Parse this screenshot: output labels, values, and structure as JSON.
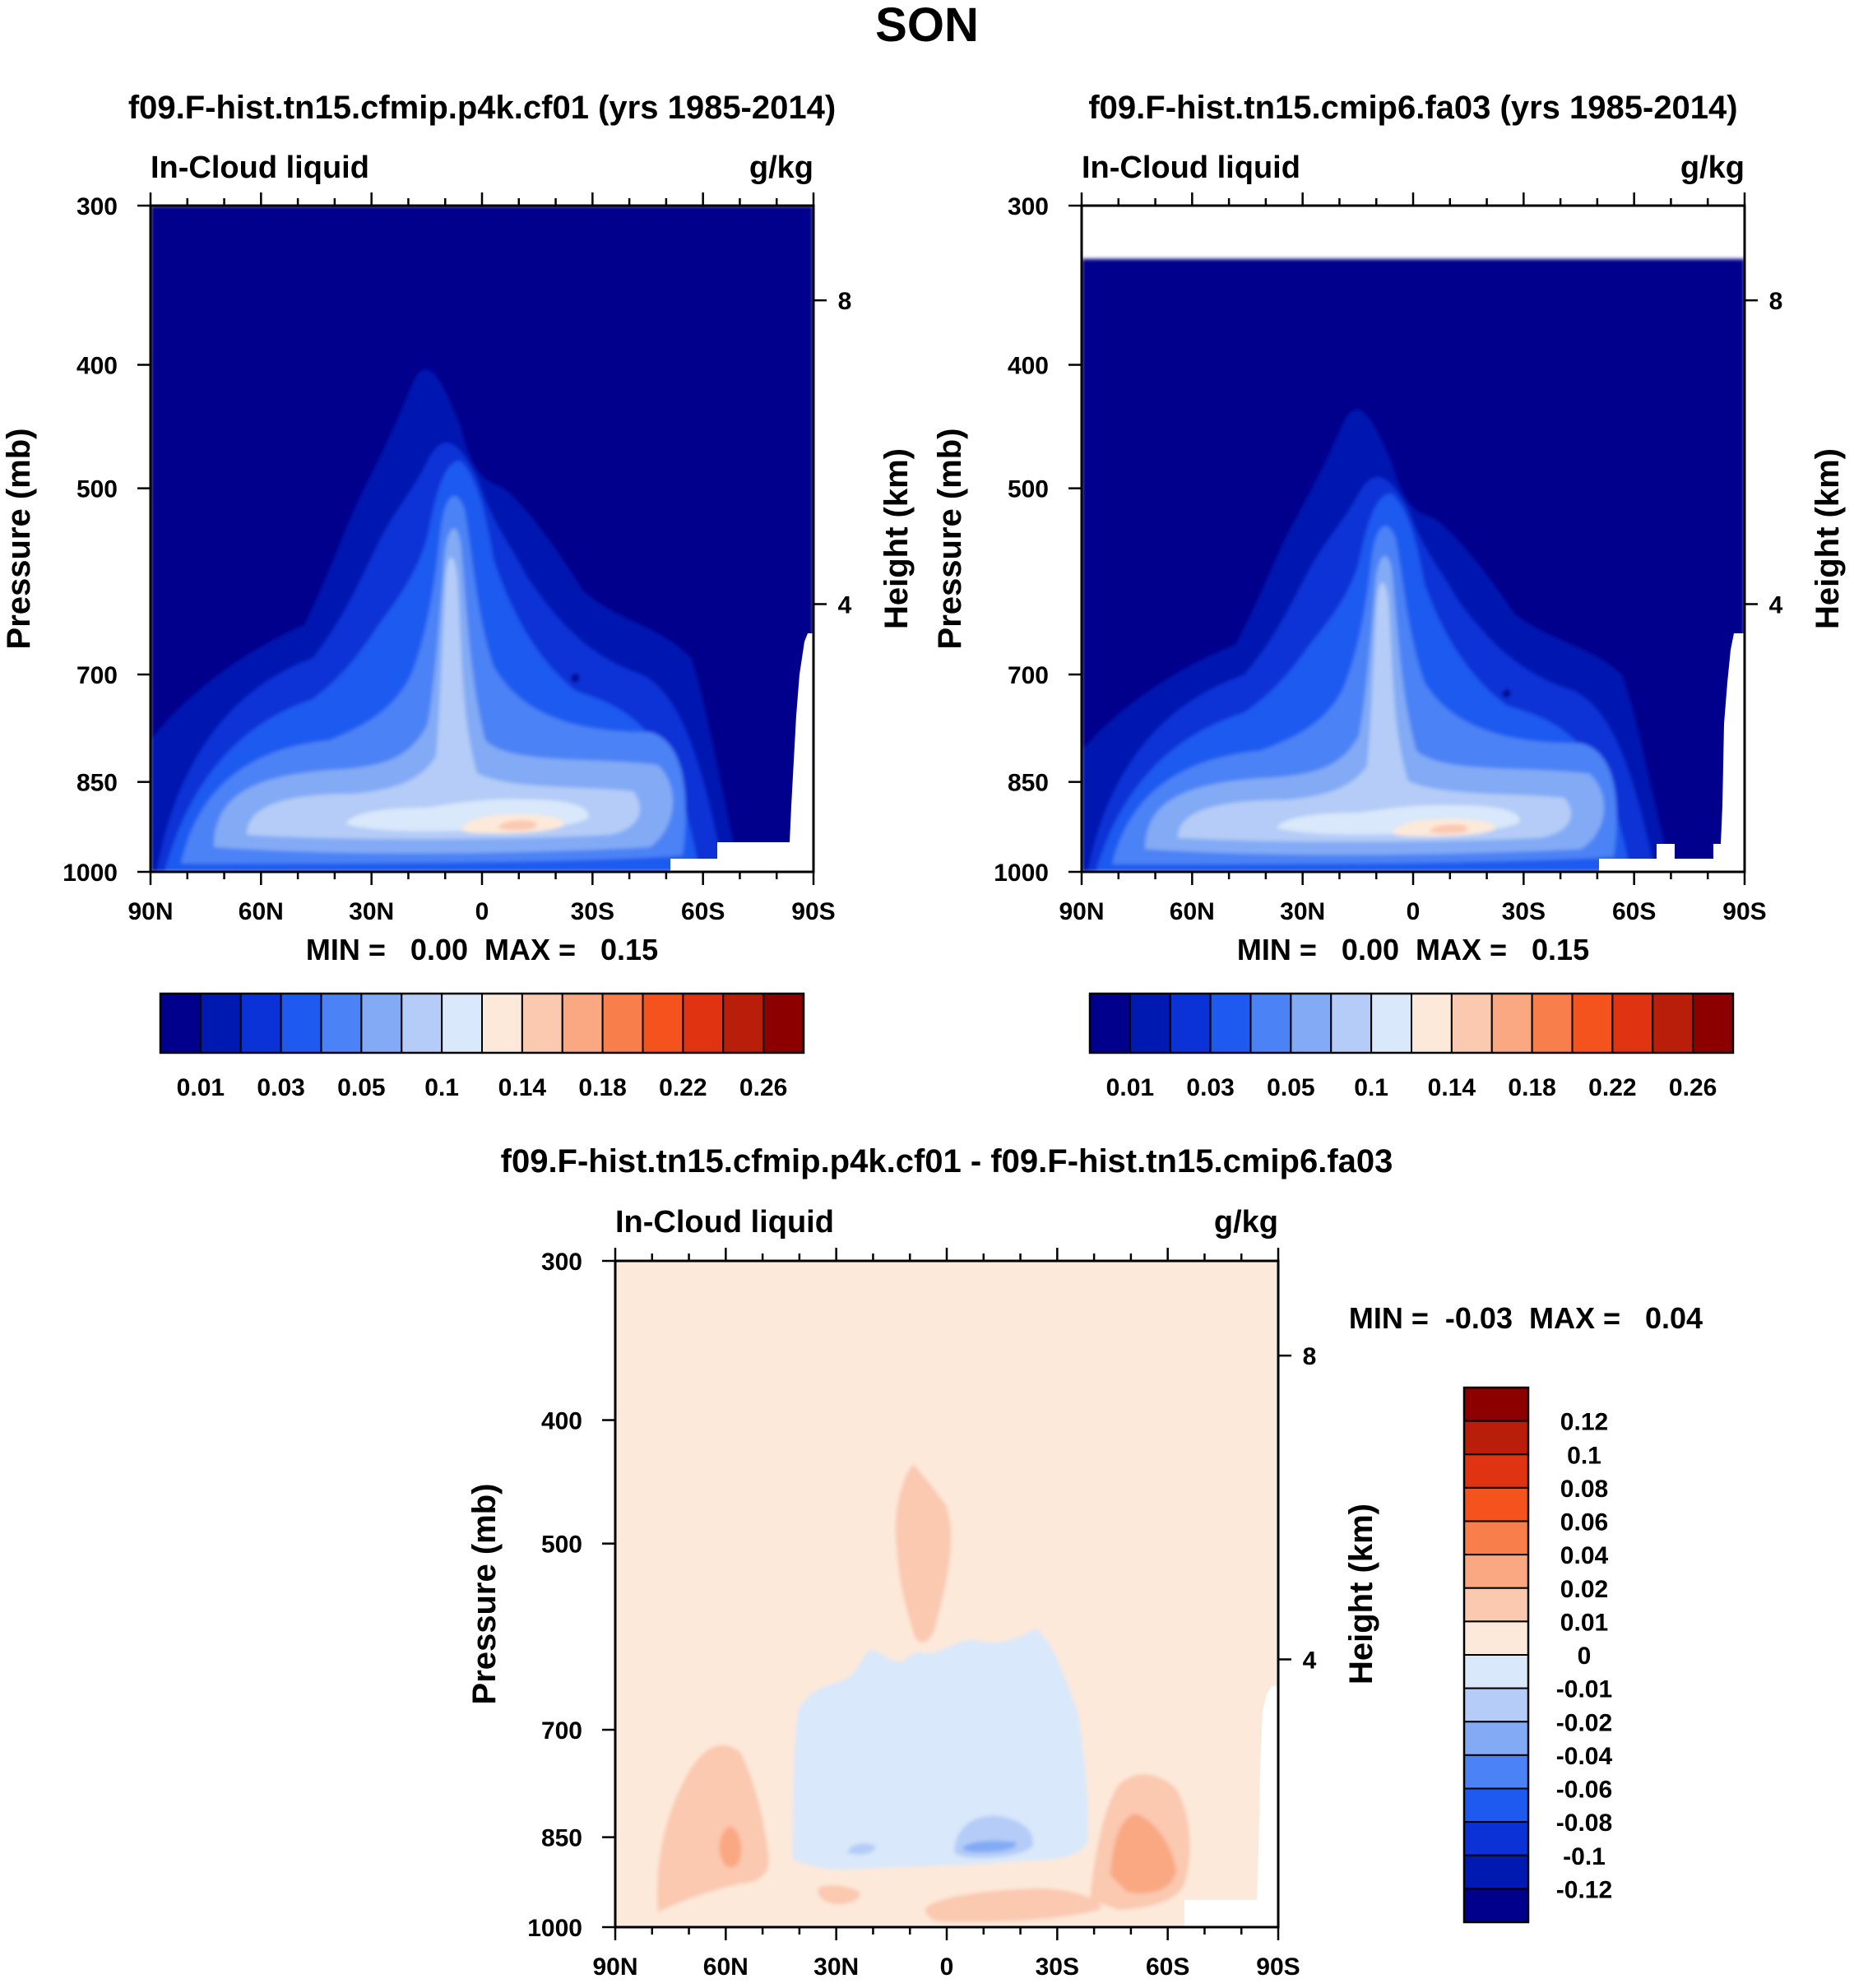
{
  "figure": {
    "title": "SON"
  },
  "colors": {
    "abs_levels": [
      "#00008c",
      "#0019b0",
      "#0a32d6",
      "#1e5af0",
      "#4b82f5",
      "#82aaf5",
      "#b4ccf7",
      "#d9e8fa",
      "#fde9d9",
      "#fbc8b0",
      "#f9a882",
      "#f87e4c",
      "#f5531e",
      "#e03312",
      "#b81e0a",
      "#8c0000"
    ],
    "diff_levels": [
      "#00008c",
      "#0019b0",
      "#0a32d6",
      "#1e5af0",
      "#4b82f5",
      "#82aaf5",
      "#b4ccf7",
      "#d9e8fa",
      "#fde9d9",
      "#fbc8b0",
      "#f9a882",
      "#f87e4c",
      "#f5531e",
      "#e03312",
      "#b81e0a",
      "#8c0000"
    ]
  },
  "chart_data": [
    {
      "id": "panel1",
      "type": "heatmap",
      "title": "f09.F-hist.tn15.cfmip.p4k.cf01 (yrs 1985-2014)",
      "left_label": "In-Cloud liquid",
      "right_label": "g/kg",
      "ylabel": "Pressure (mb)",
      "y2label": "Height (km)",
      "x_ticklabels": [
        "90N",
        "60N",
        "30N",
        "0",
        "30S",
        "60S",
        "90S"
      ],
      "x_tickvalues": [
        90,
        60,
        30,
        0,
        -30,
        -60,
        -90
      ],
      "y_ticklabels": [
        "300",
        "400",
        "500",
        "700",
        "850",
        "1000"
      ],
      "y_tickvalues": [
        300,
        400,
        500,
        700,
        850,
        1000
      ],
      "y2_ticklabels": [
        "8",
        "4"
      ],
      "y2_tickvalues": [
        8,
        4
      ],
      "xlim": [
        90,
        -90
      ],
      "ylim": [
        1000,
        300
      ],
      "stats": "MIN =   0.00  MAX =   0.15",
      "min": 0.0,
      "max": 0.15,
      "colorbar_labels": [
        "0.01",
        "0.03",
        "0.05",
        "0.1",
        "0.14",
        "0.18",
        "0.22",
        "0.26"
      ],
      "contour_levels": [
        0.01,
        0.02,
        0.03,
        0.04,
        0.05,
        0.07,
        0.1,
        0.12,
        0.14,
        0.16,
        0.18,
        0.2,
        0.22,
        0.24,
        0.26
      ]
    },
    {
      "id": "panel2",
      "type": "heatmap",
      "title": "f09.F-hist.tn15.cmip6.fa03 (yrs 1985-2014)",
      "left_label": "In-Cloud liquid",
      "right_label": "g/kg",
      "ylabel": "Pressure (mb)",
      "y2label": "Height (km)",
      "x_ticklabels": [
        "90N",
        "60N",
        "30N",
        "0",
        "30S",
        "60S",
        "90S"
      ],
      "x_tickvalues": [
        90,
        60,
        30,
        0,
        -30,
        -60,
        -90
      ],
      "y_ticklabels": [
        "300",
        "400",
        "500",
        "700",
        "850",
        "1000"
      ],
      "y_tickvalues": [
        300,
        400,
        500,
        700,
        850,
        1000
      ],
      "y2_ticklabels": [
        "8",
        "4"
      ],
      "y2_tickvalues": [
        8,
        4
      ],
      "xlim": [
        90,
        -90
      ],
      "ylim": [
        1000,
        300
      ],
      "stats": "MIN =   0.00  MAX =   0.15",
      "min": 0.0,
      "max": 0.15,
      "colorbar_labels": [
        "0.01",
        "0.03",
        "0.05",
        "0.1",
        "0.14",
        "0.18",
        "0.22",
        "0.26"
      ],
      "contour_levels": [
        0.01,
        0.02,
        0.03,
        0.04,
        0.05,
        0.07,
        0.1,
        0.12,
        0.14,
        0.16,
        0.18,
        0.2,
        0.22,
        0.24,
        0.26
      ]
    },
    {
      "id": "panel3",
      "type": "heatmap",
      "title": "f09.F-hist.tn15.cfmip.p4k.cf01 - f09.F-hist.tn15.cmip6.fa03",
      "left_label": "In-Cloud liquid",
      "right_label": "g/kg",
      "ylabel": "Pressure (mb)",
      "y2label": "Height (km)",
      "x_ticklabels": [
        "90N",
        "60N",
        "30N",
        "0",
        "30S",
        "60S",
        "90S"
      ],
      "x_tickvalues": [
        90,
        60,
        30,
        0,
        -30,
        -60,
        -90
      ],
      "y_ticklabels": [
        "300",
        "400",
        "500",
        "700",
        "850",
        "1000"
      ],
      "y_tickvalues": [
        300,
        400,
        500,
        700,
        850,
        1000
      ],
      "y2_ticklabels": [
        "8",
        "4"
      ],
      "y2_tickvalues": [
        8,
        4
      ],
      "xlim": [
        90,
        -90
      ],
      "ylim": [
        1000,
        300
      ],
      "stats": "MIN =  -0.03  MAX =   0.04",
      "min": -0.03,
      "max": 0.04,
      "colorbar_labels": [
        "0.12",
        "0.1",
        "0.08",
        "0.06",
        "0.04",
        "0.02",
        "0.01",
        "0",
        "-0.01",
        "-0.02",
        "-0.04",
        "-0.06",
        "-0.08",
        "-0.1",
        "-0.12"
      ],
      "contour_levels": [
        -0.12,
        -0.1,
        -0.08,
        -0.06,
        -0.04,
        -0.02,
        -0.01,
        0,
        0.01,
        0.02,
        0.04,
        0.06,
        0.08,
        0.1,
        0.12
      ]
    }
  ]
}
